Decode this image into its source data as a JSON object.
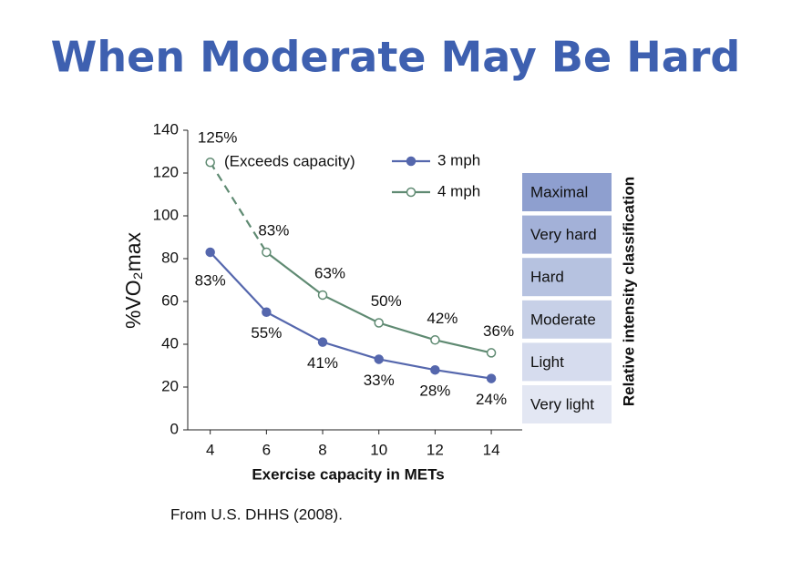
{
  "header": {
    "title": "When Moderate May Be Hard"
  },
  "chart_data": {
    "type": "line",
    "x": [
      4,
      6,
      8,
      10,
      12,
      14
    ],
    "series": [
      {
        "name": "3 mph",
        "color": "#5567ad",
        "marker": "filled",
        "values": [
          83,
          55,
          41,
          33,
          28,
          24
        ],
        "value_labels": [
          "83%",
          "55%",
          "41%",
          "33%",
          "28%",
          "24%"
        ]
      },
      {
        "name": "4 mph",
        "color": "#5f8a72",
        "marker": "open",
        "dashed_segments": [
          0
        ],
        "values": [
          125,
          83,
          63,
          50,
          42,
          36
        ],
        "value_labels": [
          "125%",
          "83%",
          "63%",
          "50%",
          "42%",
          "36%"
        ]
      }
    ],
    "annotation": "(Exceeds capacity)",
    "xlim": [
      3.2,
      15.1
    ],
    "xticks": [
      4,
      6,
      8,
      10,
      12,
      14
    ],
    "ylim": [
      0,
      140
    ],
    "yticks": [
      0,
      20,
      40,
      60,
      80,
      100,
      120,
      140
    ],
    "x_label": "Exercise capacity in METs",
    "y_label": "%VO₂max",
    "intensity_label": "Relative intensity classification",
    "intensity_classes": [
      {
        "label": "Maximal",
        "color": "#8e9fcf"
      },
      {
        "label": "Very hard",
        "color": "#a3b1d8"
      },
      {
        "label": "Hard",
        "color": "#b6c2e0"
      },
      {
        "label": "Moderate",
        "color": "#c7d0e7"
      },
      {
        "label": "Light",
        "color": "#d6dcee"
      },
      {
        "label": "Very light",
        "color": "#e3e7f3"
      }
    ]
  },
  "source": "From U.S. DHHS (2008)."
}
